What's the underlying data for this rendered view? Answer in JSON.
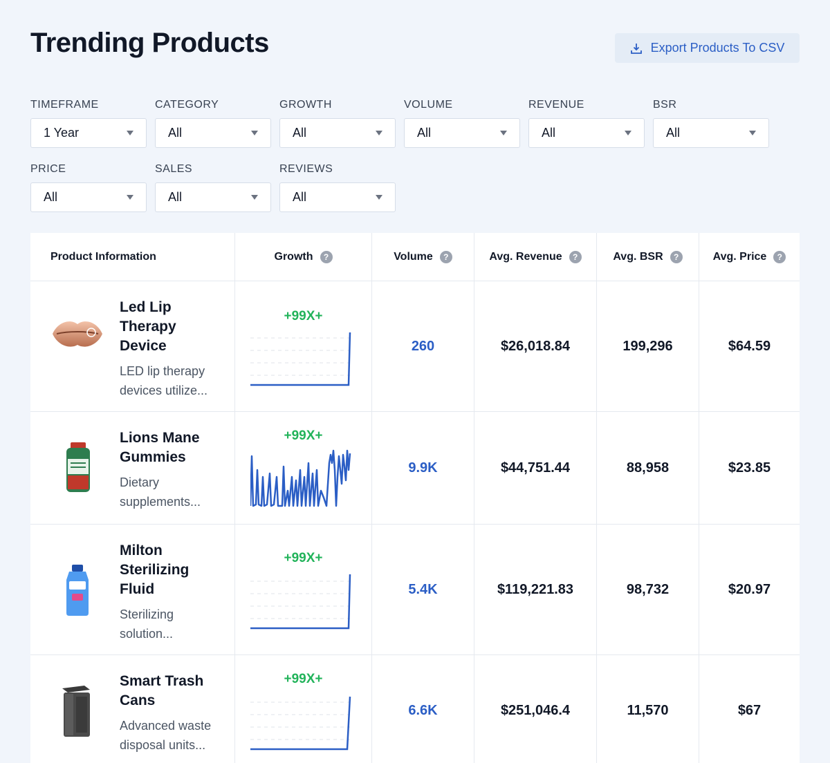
{
  "header": {
    "title": "Trending Products",
    "export_label": "Export Products To CSV"
  },
  "filters": [
    {
      "label": "TIMEFRAME",
      "value": "1 Year"
    },
    {
      "label": "CATEGORY",
      "value": "All"
    },
    {
      "label": "GROWTH",
      "value": "All"
    },
    {
      "label": "VOLUME",
      "value": "All"
    },
    {
      "label": "REVENUE",
      "value": "All"
    },
    {
      "label": "BSR",
      "value": "All"
    },
    {
      "label": "PRICE",
      "value": "All"
    },
    {
      "label": "SALES",
      "value": "All"
    },
    {
      "label": "REVIEWS",
      "value": "All"
    }
  ],
  "table": {
    "columns": [
      "Product Information",
      "Growth",
      "Volume",
      "Avg. Revenue",
      "Avg. BSR",
      "Avg. Price"
    ],
    "rows": [
      {
        "name": "Led Lip Therapy Device",
        "desc": "LED lip therapy devices utilize...",
        "growth": "+99X+",
        "volume": "260",
        "revenue": "$26,018.84",
        "bsr": "199,296",
        "price": "$64.59"
      },
      {
        "name": "Lions Mane Gummies",
        "desc": "Dietary supplements...",
        "growth": "+99X+",
        "volume": "9.9K",
        "revenue": "$44,751.44",
        "bsr": "88,958",
        "price": "$23.85"
      },
      {
        "name": "Milton Sterilizing Fluid",
        "desc": "Sterilizing solution...",
        "growth": "+99X+",
        "volume": "5.4K",
        "revenue": "$119,221.83",
        "bsr": "98,732",
        "price": "$20.97"
      },
      {
        "name": "Smart Trash Cans",
        "desc": "Advanced waste disposal units...",
        "growth": "+99X+",
        "volume": "6.6K",
        "revenue": "$251,046.4",
        "bsr": "11,570",
        "price": "$67"
      }
    ]
  },
  "colors": {
    "accent": "#2b5ec5",
    "growth_green": "#22b35a",
    "background": "#f1f5fb"
  },
  "icons": {
    "export": "download-icon",
    "dropdown": "caret-down-icon",
    "help": "help-circle-icon"
  }
}
